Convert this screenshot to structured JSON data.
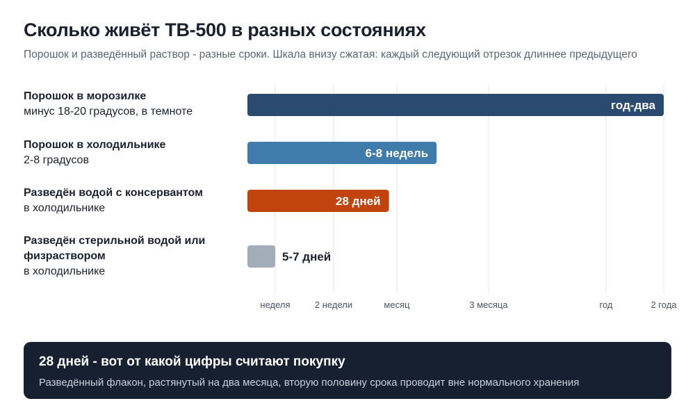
{
  "header": {
    "title": "Сколько живёт ТВ-500 в разных состояниях",
    "subtitle": "Порошок и разведённый раствор - разные сроки. Шкала внизу сжатая: каждый следующий отрезок длиннее предыдущего"
  },
  "chart_data": {
    "type": "bar",
    "orientation": "horizontal",
    "x_scale": "compressed",
    "x_unit": "days",
    "x_ticks": [
      {
        "label": "неделя",
        "days": 7
      },
      {
        "label": "2 недели",
        "days": 14
      },
      {
        "label": "месяц",
        "days": 30
      },
      {
        "label": "3 месяца",
        "days": 90
      },
      {
        "label": "год",
        "days": 365
      },
      {
        "label": "2 года",
        "days": 730
      }
    ],
    "categories": [
      {
        "title": "Порошок в морозилке",
        "subtitle": "минус 18-20 градусов, в темноте"
      },
      {
        "title": "Порошок в холодильнике",
        "subtitle": "2-8 градусов"
      },
      {
        "title": "Разведён водой с консервантом",
        "subtitle": "в холодильнике"
      },
      {
        "title": "Разведён стерильной водой или физраствором",
        "subtitle": "в холодильнике"
      }
    ],
    "series": [
      {
        "values_days": [
          730,
          56,
          28,
          7
        ],
        "value_labels": [
          "год-два",
          "6-8 недель",
          "28 дней",
          "5-7 дней"
        ],
        "colors": [
          "#2b4a70",
          "#3f7bab",
          "#c1440e",
          "#a3adb9"
        ]
      }
    ],
    "grid": true
  },
  "callout": {
    "title": "28 дней - вот от какой цифры считают покупку",
    "text": "Разведённый флакон, растянутый на два месяца, вторую половину срока проводит вне нормального хранения"
  }
}
